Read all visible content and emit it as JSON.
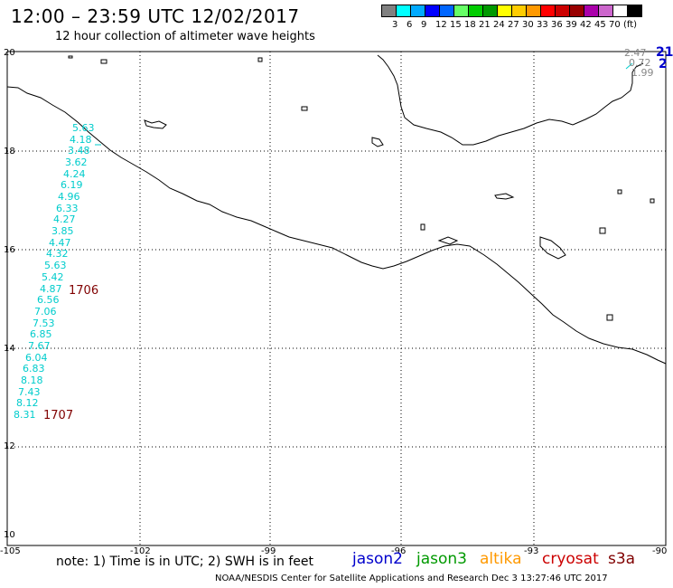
{
  "header": {
    "title": "12:00 – 23:59 UTC 12/02/2017",
    "subtitle": "12 hour collection of altimeter wave heights"
  },
  "legend": {
    "colors": [
      "#808080",
      "#00ffff",
      "#00aaff",
      "#0000ff",
      "#0066ff",
      "#66ff66",
      "#00cc00",
      "#009900",
      "#ffff00",
      "#ffcc00",
      "#ff9900",
      "#ff0000",
      "#cc0000",
      "#990000",
      "#aa00aa",
      "#cc66cc",
      "#ffffff",
      "#000000"
    ],
    "labels": [
      "3",
      "6",
      "9",
      "12",
      "15",
      "18",
      "21",
      "24",
      "27",
      "30",
      "33",
      "36",
      "39",
      "42",
      "45",
      "70",
      "(ft)"
    ]
  },
  "axes": {
    "lat_labels": [
      "20",
      "18",
      "16",
      "14",
      "12",
      "10"
    ],
    "lon_labels": [
      "-105",
      "-102",
      "-99",
      "-96",
      "-93",
      "-90"
    ]
  },
  "track1": {
    "values": [
      "5.63",
      "4.18",
      "3.48",
      "3.62",
      "4.24",
      "6.19",
      "4.96",
      "6.33",
      "4.27",
      "3.85",
      "4.47",
      "4.32",
      "5.63",
      "5.42",
      "4.87",
      "6.56",
      "7.06",
      "7.53",
      "6.85",
      "7.67",
      "6.04",
      "6.83",
      "8.18",
      "7.43",
      "8.12",
      "8.31"
    ],
    "pass_labels": [
      "1706",
      "1707"
    ]
  },
  "track2": {
    "values": [
      "2.47",
      "0.72",
      "1.99"
    ],
    "pass_labels": [
      "21",
      "2"
    ]
  },
  "footer": {
    "note": "note: 1) Time is in UTC; 2) SWH is in feet",
    "satellites": [
      {
        "name": "jason2",
        "color": "#0000cc"
      },
      {
        "name": "jason3",
        "color": "#009900"
      },
      {
        "name": "altika",
        "color": "#ff9900"
      },
      {
        "name": "cryosat",
        "color": "#cc0000"
      },
      {
        "name": "s3a",
        "color": "#800000"
      }
    ],
    "credit": "NOAA/NESDIS Center for Satellite Applications and Research    Dec  3 13:27:46 UTC 2017"
  }
}
